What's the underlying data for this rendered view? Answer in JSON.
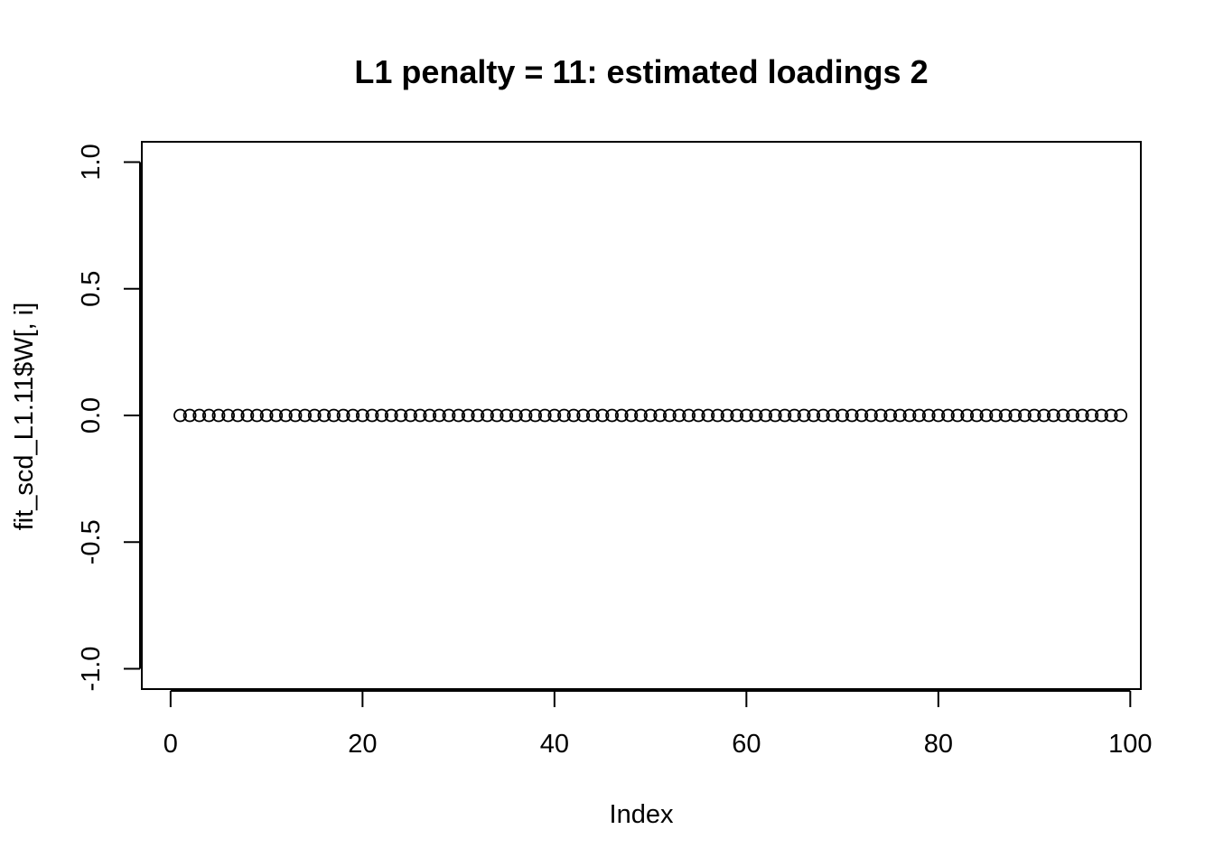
{
  "chart_data": {
    "type": "scatter",
    "title": "L1 penalty = 11: estimated loadings 2",
    "xlabel": "Index",
    "ylabel": "fit_scd_L1.11$W[, i]",
    "xlim": [
      -3.0,
      101.1
    ],
    "ylim": [
      -1.08,
      1.08
    ],
    "x_ticks": [
      0,
      20,
      40,
      60,
      80,
      100
    ],
    "x_tick_labels": [
      "0",
      "20",
      "40",
      "60",
      "80",
      "100"
    ],
    "y_ticks": [
      -1.0,
      -0.5,
      0.0,
      0.5,
      1.0
    ],
    "y_tick_labels": [
      "-1.0",
      "-0.5",
      "0.0",
      "0.5",
      "1.0"
    ],
    "grid": false,
    "marker": "open-circle",
    "colors": {
      "points": "#000000",
      "axes": "#000000",
      "background": "#ffffff"
    },
    "series": [
      {
        "x": [
          1,
          2,
          3,
          4,
          5,
          6,
          7,
          8,
          9,
          10,
          11,
          12,
          13,
          14,
          15,
          16,
          17,
          18,
          19,
          20,
          21,
          22,
          23,
          24,
          25,
          26,
          27,
          28,
          29,
          30,
          31,
          32,
          33,
          34,
          35,
          36,
          37,
          38,
          39,
          40,
          41,
          42,
          43,
          44,
          45,
          46,
          47,
          48,
          49,
          50,
          51,
          52,
          53,
          54,
          55,
          56,
          57,
          58,
          59,
          60,
          61,
          62,
          63,
          64,
          65,
          66,
          67,
          68,
          69,
          70,
          71,
          72,
          73,
          74,
          75,
          76,
          77,
          78,
          79,
          80,
          81,
          82,
          83,
          84,
          85,
          86,
          87,
          88,
          89,
          90,
          91,
          92,
          93,
          94,
          95,
          96,
          97,
          98,
          99
        ],
        "y": [
          0,
          0,
          0,
          0,
          0,
          0,
          0,
          0,
          0,
          0,
          0,
          0,
          0,
          0,
          0,
          0,
          0,
          0,
          0,
          0,
          0,
          0,
          0,
          0,
          0,
          0,
          0,
          0,
          0,
          0,
          0,
          0,
          0,
          0,
          0,
          0,
          0,
          0,
          0,
          0,
          0,
          0,
          0,
          0,
          0,
          0,
          0,
          0,
          0,
          0,
          0,
          0,
          0,
          0,
          0,
          0,
          0,
          0,
          0,
          0,
          0,
          0,
          0,
          0,
          0,
          0,
          0,
          0,
          0,
          0,
          0,
          0,
          0,
          0,
          0,
          0,
          0,
          0,
          0,
          0,
          0,
          0,
          0,
          0,
          0,
          0,
          0,
          0,
          0,
          0,
          0,
          0,
          0,
          0,
          0,
          0,
          0,
          0,
          0
        ]
      }
    ]
  }
}
